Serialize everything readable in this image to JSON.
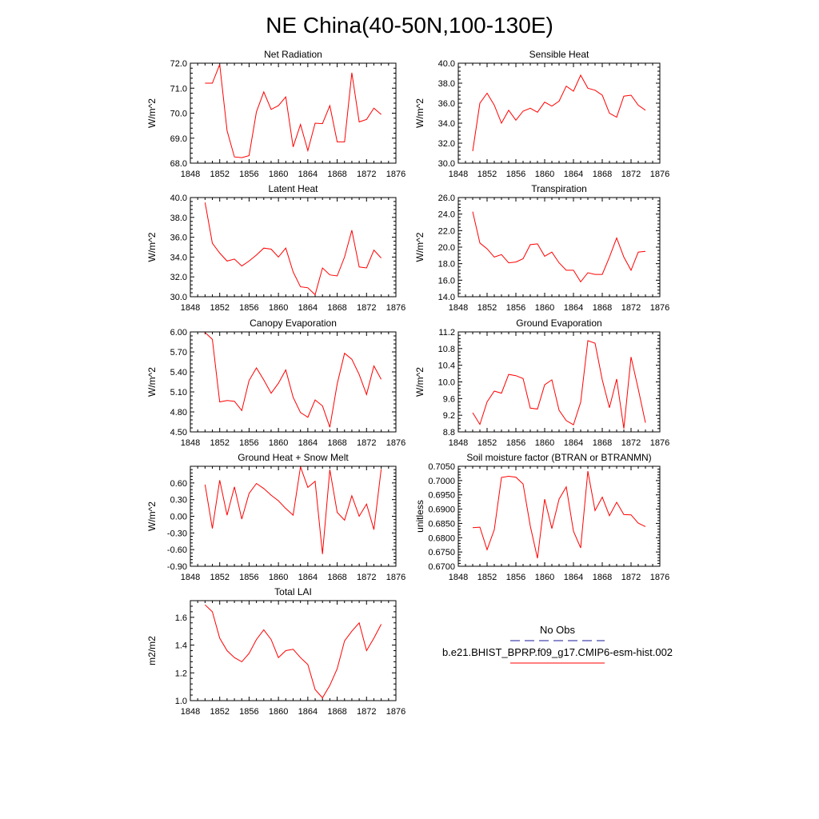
{
  "figure": {
    "title": "NE China(40-50N,100-130E)",
    "legend": {
      "obs_label": "No Obs",
      "model_label": "b.e21.BHIST_BPRP.f09_g17.CMIP6-esm-hist.002",
      "obs_color": "#1a1a99",
      "model_color": "#ff0000"
    },
    "x_ticks": [
      "1848",
      "1852",
      "1856",
      "1860",
      "1864",
      "1868",
      "1872",
      "1876"
    ]
  },
  "chart_data": [
    {
      "type": "line",
      "title": "Net Radiation",
      "ylabel": "W/m^2",
      "xlim": [
        1848,
        1876
      ],
      "ylim": [
        68.0,
        72.0
      ],
      "yticks": [
        "68.0",
        "69.0",
        "70.0",
        "71.0",
        "72.0"
      ],
      "series": [
        {
          "color": "#ff0000",
          "x": [
            1850,
            1851,
            1852,
            1853,
            1854,
            1855,
            1856,
            1857,
            1858,
            1859,
            1860,
            1861,
            1862,
            1863,
            1864,
            1865,
            1866,
            1867,
            1868,
            1869,
            1870,
            1871,
            1872,
            1873,
            1874
          ],
          "y": [
            71.2,
            71.2,
            71.95,
            69.3,
            68.25,
            68.22,
            68.3,
            70.05,
            70.85,
            70.15,
            70.3,
            70.65,
            68.65,
            69.55,
            68.5,
            69.6,
            69.58,
            70.3,
            68.85,
            68.85,
            71.62,
            69.65,
            69.75,
            70.2,
            69.95
          ]
        }
      ]
    },
    {
      "type": "line",
      "title": "Sensible Heat",
      "ylabel": "W/m^2",
      "xlim": [
        1848,
        1876
      ],
      "ylim": [
        30.0,
        40.0
      ],
      "yticks": [
        "30.0",
        "32.0",
        "34.0",
        "36.0",
        "38.0",
        "40.0"
      ],
      "series": [
        {
          "color": "#ff0000",
          "x": [
            1850,
            1851,
            1852,
            1853,
            1854,
            1855,
            1856,
            1857,
            1858,
            1859,
            1860,
            1861,
            1862,
            1863,
            1864,
            1865,
            1866,
            1867,
            1868,
            1869,
            1870,
            1871,
            1872,
            1873,
            1874
          ],
          "y": [
            31.2,
            36.0,
            37.0,
            35.8,
            34.0,
            35.3,
            34.3,
            35.2,
            35.5,
            35.1,
            36.1,
            35.7,
            36.2,
            37.7,
            37.2,
            38.8,
            37.5,
            37.3,
            36.8,
            35.0,
            34.6,
            36.7,
            36.8,
            35.8,
            35.3
          ]
        }
      ]
    },
    {
      "type": "line",
      "title": "Latent Heat",
      "ylabel": "W/m^2",
      "xlim": [
        1848,
        1876
      ],
      "ylim": [
        30.0,
        40.0
      ],
      "yticks": [
        "30.0",
        "32.0",
        "34.0",
        "36.0",
        "38.0",
        "40.0"
      ],
      "series": [
        {
          "color": "#ff0000",
          "x": [
            1850,
            1851,
            1852,
            1853,
            1854,
            1855,
            1856,
            1857,
            1858,
            1859,
            1860,
            1861,
            1862,
            1863,
            1864,
            1865,
            1866,
            1867,
            1868,
            1869,
            1870,
            1871,
            1872,
            1873,
            1874
          ],
          "y": [
            39.5,
            35.4,
            34.4,
            33.6,
            33.8,
            33.1,
            33.6,
            34.2,
            34.9,
            34.8,
            34.0,
            34.9,
            32.5,
            31.0,
            30.9,
            30.2,
            32.9,
            32.2,
            32.1,
            34.0,
            36.7,
            33.0,
            32.9,
            34.7,
            33.9
          ]
        }
      ]
    },
    {
      "type": "line",
      "title": "Transpiration",
      "ylabel": "W/m^2",
      "xlim": [
        1848,
        1876
      ],
      "ylim": [
        14.0,
        26.0
      ],
      "yticks": [
        "14.0",
        "16.0",
        "18.0",
        "20.0",
        "22.0",
        "24.0",
        "26.0"
      ],
      "series": [
        {
          "color": "#ff0000",
          "x": [
            1850,
            1851,
            1852,
            1853,
            1854,
            1855,
            1856,
            1857,
            1858,
            1859,
            1860,
            1861,
            1862,
            1863,
            1864,
            1865,
            1866,
            1867,
            1868,
            1869,
            1870,
            1871,
            1872,
            1873,
            1874
          ],
          "y": [
            24.3,
            20.5,
            19.8,
            18.8,
            19.1,
            18.1,
            18.2,
            18.6,
            20.3,
            20.4,
            18.9,
            19.4,
            18.1,
            17.2,
            17.2,
            15.8,
            16.9,
            16.7,
            16.7,
            18.8,
            21.1,
            18.8,
            17.2,
            19.4,
            19.5
          ]
        }
      ]
    },
    {
      "type": "line",
      "title": "Canopy Evaporation",
      "ylabel": "W/m^2",
      "xlim": [
        1848,
        1876
      ],
      "ylim": [
        4.5,
        6.0
      ],
      "yticks": [
        "4.50",
        "4.80",
        "5.10",
        "5.40",
        "5.70",
        "6.00"
      ],
      "series": [
        {
          "color": "#ff0000",
          "x": [
            1850,
            1851,
            1852,
            1853,
            1854,
            1855,
            1856,
            1857,
            1858,
            1859,
            1860,
            1861,
            1862,
            1863,
            1864,
            1865,
            1866,
            1867,
            1868,
            1869,
            1870,
            1871,
            1872,
            1873,
            1874
          ],
          "y": [
            5.99,
            5.89,
            4.95,
            4.97,
            4.96,
            4.82,
            5.27,
            5.46,
            5.28,
            5.08,
            5.23,
            5.43,
            5.02,
            4.79,
            4.72,
            4.98,
            4.89,
            4.57,
            5.22,
            5.68,
            5.59,
            5.36,
            5.06,
            5.49,
            5.29
          ]
        }
      ]
    },
    {
      "type": "line",
      "title": "Ground Evaporation",
      "ylabel": "W/m^2",
      "xlim": [
        1848,
        1876
      ],
      "ylim": [
        8.8,
        11.2
      ],
      "yticks": [
        "8.8",
        "9.2",
        "9.6",
        "10.0",
        "10.4",
        "10.8",
        "11.2"
      ],
      "series": [
        {
          "color": "#ff0000",
          "x": [
            1850,
            1851,
            1852,
            1853,
            1854,
            1855,
            1856,
            1857,
            1858,
            1859,
            1860,
            1861,
            1862,
            1863,
            1864,
            1865,
            1866,
            1867,
            1868,
            1869,
            1870,
            1871,
            1872,
            1873,
            1874
          ],
          "y": [
            9.26,
            8.98,
            9.52,
            9.78,
            9.73,
            10.18,
            10.15,
            10.08,
            9.37,
            9.35,
            9.93,
            10.05,
            9.32,
            9.07,
            8.97,
            9.51,
            10.99,
            10.93,
            10.05,
            9.38,
            10.07,
            8.88,
            10.6,
            9.83,
            9.02
          ]
        }
      ]
    },
    {
      "type": "line",
      "title": "Ground Heat + Snow Melt",
      "ylabel": "W/m^2",
      "xlim": [
        1848,
        1876
      ],
      "ylim": [
        -0.9,
        0.9
      ],
      "yticks": [
        "-0.90",
        "-0.60",
        "-0.30",
        "0.00",
        "0.30",
        "0.60"
      ],
      "series": [
        {
          "color": "#ff0000",
          "x": [
            1850,
            1851,
            1852,
            1853,
            1854,
            1855,
            1856,
            1857,
            1858,
            1859,
            1860,
            1861,
            1862,
            1863,
            1864,
            1865,
            1866,
            1867,
            1868,
            1869,
            1870,
            1871,
            1872,
            1873,
            1874
          ],
          "y": [
            0.57,
            -0.22,
            0.65,
            0.02,
            0.53,
            -0.05,
            0.41,
            0.59,
            0.5,
            0.38,
            0.28,
            0.14,
            0.02,
            0.89,
            0.52,
            0.63,
            -0.68,
            0.84,
            0.07,
            -0.07,
            0.37,
            0.0,
            0.22,
            -0.24,
            0.85
          ]
        }
      ]
    },
    {
      "type": "line",
      "title": "Soil moisture factor (BTRAN or BTRANMN)",
      "ylabel": "unitless",
      "xlim": [
        1848,
        1876
      ],
      "ylim": [
        0.67,
        0.705
      ],
      "yticks": [
        "0.6700",
        "0.6750",
        "0.6800",
        "0.6850",
        "0.6900",
        "0.6950",
        "0.7000",
        "0.7050"
      ],
      "series": [
        {
          "color": "#ff0000",
          "x": [
            1850,
            1851,
            1852,
            1853,
            1854,
            1855,
            1856,
            1857,
            1858,
            1859,
            1860,
            1861,
            1862,
            1863,
            1864,
            1865,
            1866,
            1867,
            1868,
            1869,
            1870,
            1871,
            1872,
            1873,
            1874
          ],
          "y": [
            0.6835,
            0.6837,
            0.6758,
            0.6828,
            0.7011,
            0.7015,
            0.7012,
            0.6988,
            0.6841,
            0.6728,
            0.6935,
            0.6832,
            0.6935,
            0.6978,
            0.6823,
            0.6764,
            0.7033,
            0.6895,
            0.6942,
            0.6877,
            0.6924,
            0.6881,
            0.688,
            0.6851,
            0.6839
          ]
        }
      ]
    },
    {
      "type": "line",
      "title": "Total LAI",
      "ylabel": "m2/m2",
      "xlim": [
        1848,
        1876
      ],
      "ylim": [
        1.0,
        1.72
      ],
      "yticks": [
        "1.0",
        "1.2",
        "1.4",
        "1.6"
      ],
      "series": [
        {
          "color": "#ff0000",
          "x": [
            1850,
            1851,
            1852,
            1853,
            1854,
            1855,
            1856,
            1857,
            1858,
            1859,
            1860,
            1861,
            1862,
            1863,
            1864,
            1865,
            1866,
            1867,
            1868,
            1869,
            1870,
            1871,
            1872,
            1873,
            1874
          ],
          "y": [
            1.69,
            1.64,
            1.45,
            1.36,
            1.31,
            1.28,
            1.34,
            1.44,
            1.51,
            1.44,
            1.31,
            1.36,
            1.37,
            1.31,
            1.26,
            1.08,
            1.02,
            1.11,
            1.23,
            1.43,
            1.5,
            1.56,
            1.36,
            1.45,
            1.55
          ]
        }
      ]
    }
  ]
}
